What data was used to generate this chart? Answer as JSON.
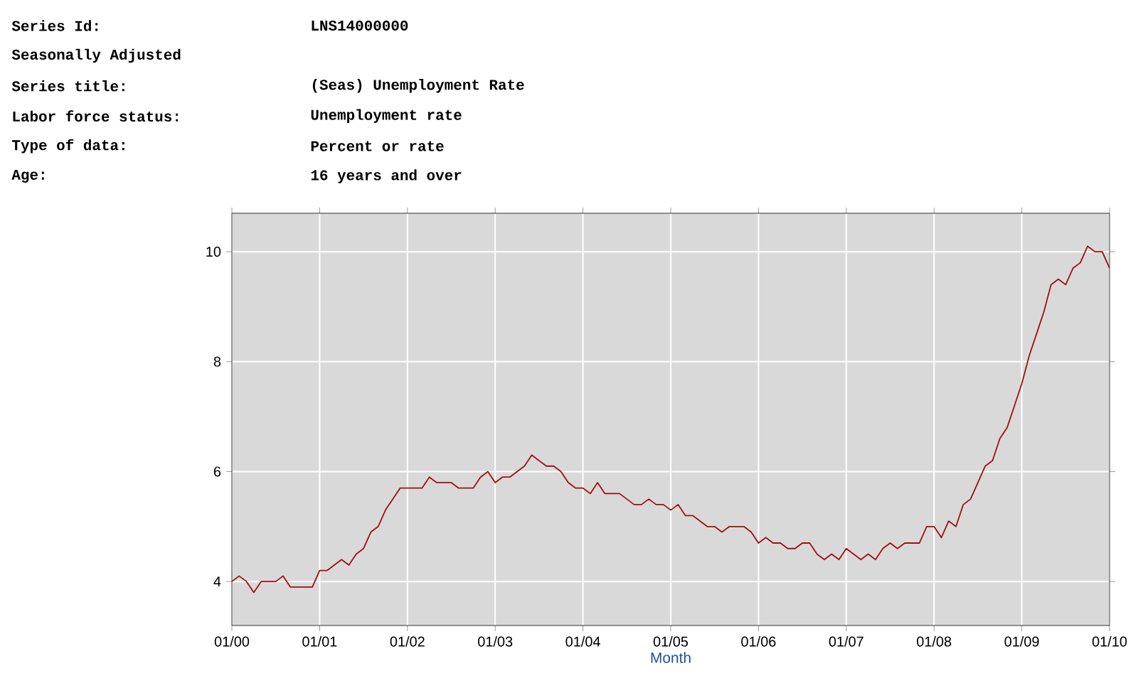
{
  "chart_data": {
    "type": "line",
    "xlabel": "Month",
    "annotations": [
      "Series Id:",
      "LNS14000000",
      "Seasonally Adjusted",
      "Series title:",
      "(Seas) Unemployment Rate",
      "Labor force status:",
      "Unemployment rate",
      "Type of data:",
      "Percent or rate",
      "Age:",
      "16 years and over"
    ],
    "x": [
      "2000-01",
      "2000-02",
      "2000-03",
      "2000-04",
      "2000-05",
      "2000-06",
      "2000-07",
      "2000-08",
      "2000-09",
      "2000-10",
      "2000-11",
      "2000-12",
      "2001-01",
      "2001-02",
      "2001-03",
      "2001-04",
      "2001-05",
      "2001-06",
      "2001-07",
      "2001-08",
      "2001-09",
      "2001-10",
      "2001-11",
      "2001-12",
      "2002-01",
      "2002-02",
      "2002-03",
      "2002-04",
      "2002-05",
      "2002-06",
      "2002-07",
      "2002-08",
      "2002-09",
      "2002-10",
      "2002-11",
      "2002-12",
      "2003-01",
      "2003-02",
      "2003-03",
      "2003-04",
      "2003-05",
      "2003-06",
      "2003-07",
      "2003-08",
      "2003-09",
      "2003-10",
      "2003-11",
      "2003-12",
      "2004-01",
      "2004-02",
      "2004-03",
      "2004-04",
      "2004-05",
      "2004-06",
      "2004-07",
      "2004-08",
      "2004-09",
      "2004-10",
      "2004-11",
      "2004-12",
      "2005-01",
      "2005-02",
      "2005-03",
      "2005-04",
      "2005-05",
      "2005-06",
      "2005-07",
      "2005-08",
      "2005-09",
      "2005-10",
      "2005-11",
      "2005-12",
      "2006-01",
      "2006-02",
      "2006-03",
      "2006-04",
      "2006-05",
      "2006-06",
      "2006-07",
      "2006-08",
      "2006-09",
      "2006-10",
      "2006-11",
      "2006-12",
      "2007-01",
      "2007-02",
      "2007-03",
      "2007-04",
      "2007-05",
      "2007-06",
      "2007-07",
      "2007-08",
      "2007-09",
      "2007-10",
      "2007-11",
      "2007-12",
      "2008-01",
      "2008-02",
      "2008-03",
      "2008-04",
      "2008-05",
      "2008-06",
      "2008-07",
      "2008-08",
      "2008-09",
      "2008-10",
      "2008-11",
      "2008-12",
      "2009-01",
      "2009-02",
      "2009-03",
      "2009-04",
      "2009-05",
      "2009-06",
      "2009-07",
      "2009-08",
      "2009-09",
      "2009-10",
      "2009-11",
      "2009-12",
      "2010-01"
    ],
    "series": [
      {
        "color": "#a01010",
        "values": [
          4.0,
          4.1,
          4.0,
          3.8,
          4.0,
          4.0,
          4.0,
          4.1,
          3.9,
          3.9,
          3.9,
          3.9,
          4.2,
          4.2,
          4.3,
          4.4,
          4.3,
          4.5,
          4.6,
          4.9,
          5.0,
          5.3,
          5.5,
          5.7,
          5.7,
          5.7,
          5.7,
          5.9,
          5.8,
          5.8,
          5.8,
          5.7,
          5.7,
          5.7,
          5.9,
          6.0,
          5.8,
          5.9,
          5.9,
          6.0,
          6.1,
          6.3,
          6.2,
          6.1,
          6.1,
          6.0,
          5.8,
          5.7,
          5.7,
          5.6,
          5.8,
          5.6,
          5.6,
          5.6,
          5.5,
          5.4,
          5.4,
          5.5,
          5.4,
          5.4,
          5.3,
          5.4,
          5.2,
          5.2,
          5.1,
          5.0,
          5.0,
          4.9,
          5.0,
          5.0,
          5.0,
          4.9,
          4.7,
          4.8,
          4.7,
          4.7,
          4.6,
          4.6,
          4.7,
          4.7,
          4.5,
          4.4,
          4.5,
          4.4,
          4.6,
          4.5,
          4.4,
          4.5,
          4.4,
          4.6,
          4.7,
          4.6,
          4.7,
          4.7,
          4.7,
          5.0,
          5.0,
          4.8,
          5.1,
          5.0,
          5.4,
          5.5,
          5.8,
          6.1,
          6.2,
          6.6,
          6.8,
          7.2,
          7.6,
          8.1,
          8.5,
          8.9,
          9.4,
          9.5,
          9.4,
          9.7,
          9.8,
          10.1,
          10.0,
          10.0,
          9.7
        ]
      }
    ],
    "xlim": [
      "2000-01",
      "2010-01"
    ],
    "xticks": [
      {
        "value": "2000-01",
        "label": "01/00"
      },
      {
        "value": "2001-01",
        "label": "01/01"
      },
      {
        "value": "2002-01",
        "label": "01/02"
      },
      {
        "value": "2003-01",
        "label": "01/03"
      },
      {
        "value": "2004-01",
        "label": "01/04"
      },
      {
        "value": "2005-01",
        "label": "01/05"
      },
      {
        "value": "2006-01",
        "label": "01/06"
      },
      {
        "value": "2007-01",
        "label": "01/07"
      },
      {
        "value": "2008-01",
        "label": "01/08"
      },
      {
        "value": "2009-01",
        "label": "01/09"
      },
      {
        "value": "2010-01",
        "label": "01/10"
      }
    ],
    "ylim": [
      3.2,
      10.7
    ],
    "yticks": [
      4,
      6,
      8,
      10
    ],
    "grid": true,
    "marker": "none",
    "line_style": "solid"
  }
}
